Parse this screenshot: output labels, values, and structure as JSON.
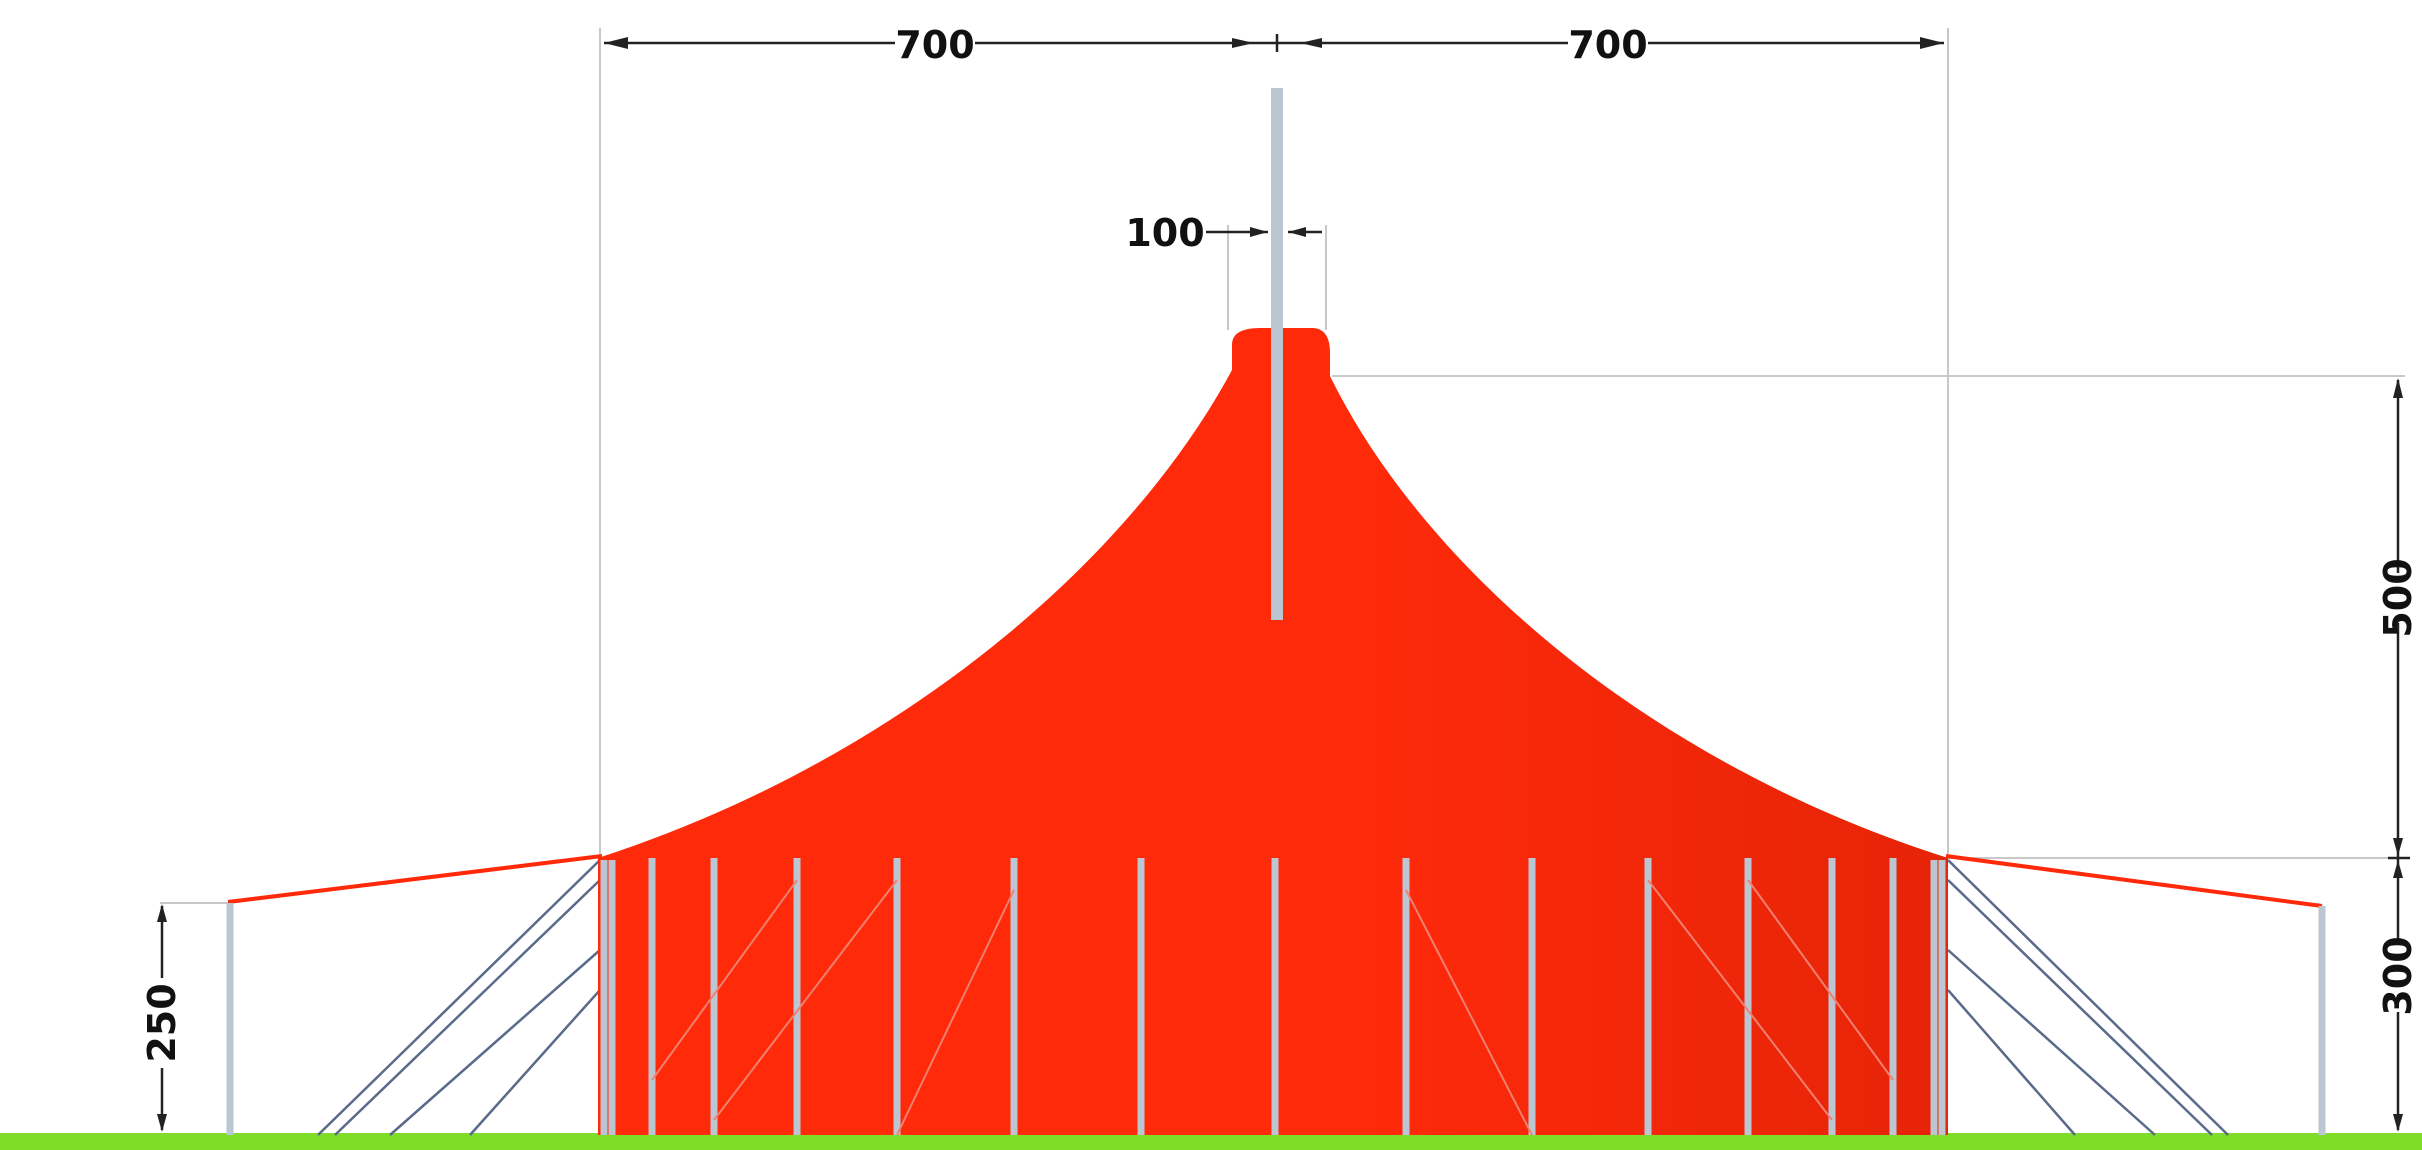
{
  "dimensions": {
    "left_width": "700",
    "right_width": "700",
    "mast_width": "100",
    "roof_height": "500",
    "wall_height": "300",
    "outer_height": "250"
  },
  "colors": {
    "canvas": "#ff2a0a",
    "canvas_shade": "#d81e06",
    "pole": "#bcc6d2",
    "ground": "#7fdd2a",
    "dimension_line": "#222222",
    "guide_line": "#c8c8c8"
  }
}
